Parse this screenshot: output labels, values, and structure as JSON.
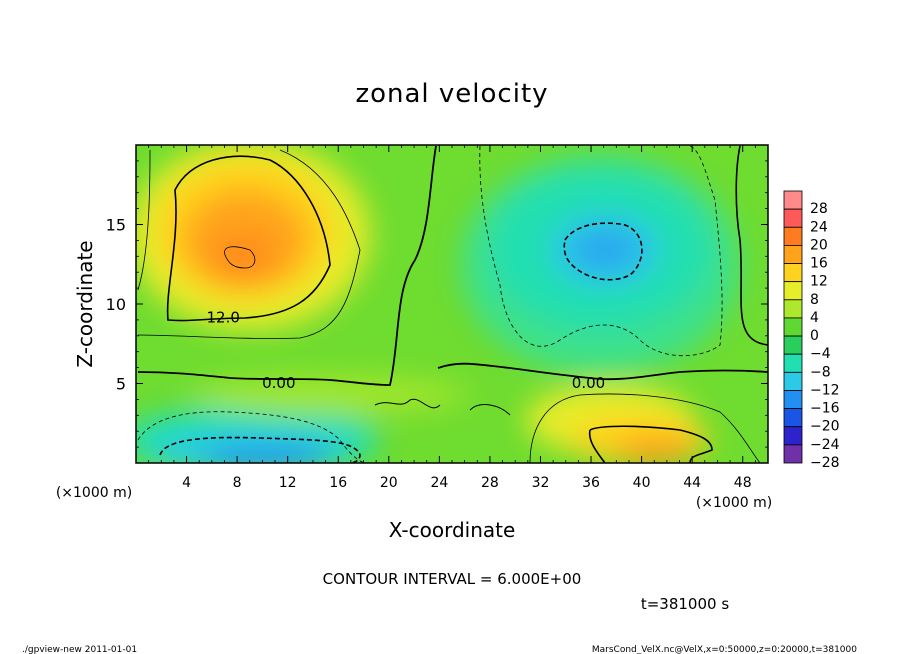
{
  "chart_data": {
    "type": "heatmap",
    "title": "zonal velocity",
    "xlabel": "X-coordinate",
    "ylabel": "Z-coordinate",
    "x_unit": "(×1000 m)",
    "y_unit": "(×1000 m)",
    "xlim": [
      0,
      50
    ],
    "ylim": [
      0,
      20
    ],
    "x_ticks": [
      4,
      8,
      12,
      16,
      20,
      24,
      28,
      32,
      36,
      40,
      44,
      48
    ],
    "y_ticks": [
      5,
      10,
      15
    ],
    "contour_labels": [
      {
        "text": "12.0",
        "x": 6.9,
        "z": 9.2
      },
      {
        "text": "0.00",
        "x": 11.3,
        "z": 5.1
      },
      {
        "text": "0.00",
        "x": 35.8,
        "z": 5.1
      }
    ],
    "features": [
      {
        "type": "max",
        "x": 8.5,
        "z": 13.5,
        "value": 18
      },
      {
        "type": "min",
        "x": 37.5,
        "z": 13,
        "value": -12
      },
      {
        "type": "min",
        "x": 10.5,
        "z": 0.8,
        "value": -17
      },
      {
        "type": "max",
        "x": 42,
        "z": 1.2,
        "value": 16
      }
    ],
    "colorbar": {
      "levels": [
        28,
        24,
        20,
        16,
        12,
        8,
        4,
        0,
        -4,
        -8,
        -12,
        -16,
        -20,
        -24,
        -28
      ],
      "colors": [
        "#ff8a8a",
        "#ff5a5a",
        "#ff7b1f",
        "#ffa31a",
        "#ffd21f",
        "#e6ee2a",
        "#aee82c",
        "#5fd832",
        "#28cf5a",
        "#22dfb1",
        "#2ccae7",
        "#2190f1",
        "#1b55e6",
        "#2e22cd",
        "#7030a8"
      ]
    },
    "contour_interval": "CONTOUR INTERVAL = 6.000E+00",
    "time": "t=381000 s",
    "footer_left": "./gpview-new  2011-01-01",
    "footer_right": "MarsCond_VelX.nc@VelX,x=0:50000,z=0:20000,t=381000"
  }
}
